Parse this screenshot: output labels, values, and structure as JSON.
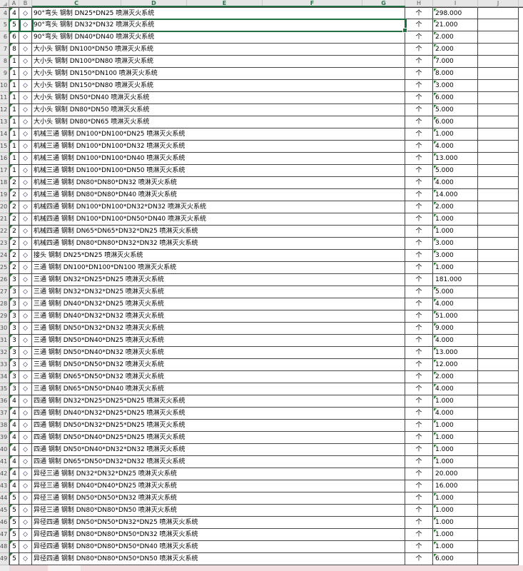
{
  "app": {
    "type": "spreadsheet-grid"
  },
  "colors": {
    "accent_green": "#217346",
    "error_triangle": "#2e7d32",
    "bottom_band_pink": "#f3dee1"
  },
  "columns": {
    "letters": [
      "A",
      "B",
      "C",
      "D",
      "E",
      "F",
      "G",
      "H",
      "I",
      "J"
    ],
    "selected_letters": [
      "C",
      "D",
      "E",
      "F",
      "G"
    ]
  },
  "selection": {
    "row": 5
  },
  "row_marker": "◇",
  "unit_label": "个",
  "visible_row_range": {
    "first": 4,
    "last": 49
  },
  "rows": [
    {
      "n": 4,
      "a": "4",
      "desc": "90°弯头 钢制 DN25*DN25 喷淋灭火系统",
      "qty": "298.000",
      "tri": true
    },
    {
      "n": 5,
      "a": "5",
      "desc": "90°弯头 钢制 DN32*DN32 喷淋灭火系统",
      "qty": "21.000",
      "tri": true
    },
    {
      "n": 6,
      "a": "6",
      "desc": "90°弯头 钢制 DN40*DN40 喷淋灭火系统",
      "qty": "2.000",
      "tri": true
    },
    {
      "n": 7,
      "a": "8",
      "desc": "大小头 钢制 DN100*DN50 喷淋灭火系统",
      "qty": "2.000",
      "tri": true
    },
    {
      "n": 8,
      "a": "1",
      "desc": "大小头 钢制 DN100*DN80 喷淋灭火系统",
      "qty": "7.000",
      "tri": true
    },
    {
      "n": 9,
      "a": "1",
      "desc": "大小头 钢制 DN150*DN100 喷淋灭火系统",
      "qty": "8.000",
      "tri": true
    },
    {
      "n": 10,
      "a": "1",
      "desc": "大小头 钢制 DN150*DN80 喷淋灭火系统",
      "qty": "3.000",
      "tri": true
    },
    {
      "n": 11,
      "a": "1",
      "desc": "大小头 钢制 DN50*DN40 喷淋灭火系统",
      "qty": "6.000",
      "tri": true
    },
    {
      "n": 12,
      "a": "1",
      "desc": "大小头 钢制 DN80*DN50 喷淋灭火系统",
      "qty": "5.000",
      "tri": true
    },
    {
      "n": 13,
      "a": "1",
      "desc": "大小头 钢制 DN80*DN65 喷淋灭火系统",
      "qty": "6.000",
      "tri": true
    },
    {
      "n": 14,
      "a": "1",
      "desc": "机械三通 钢制 DN100*DN100*DN25 喷淋灭火系统",
      "qty": "1.000",
      "tri": true
    },
    {
      "n": 15,
      "a": "1",
      "desc": "机械三通 钢制 DN100*DN100*DN32 喷淋灭火系统",
      "qty": "4.000",
      "tri": true
    },
    {
      "n": 16,
      "a": "1",
      "desc": "机械三通 钢制 DN100*DN100*DN40 喷淋灭火系统",
      "qty": "13.000",
      "tri": true
    },
    {
      "n": 17,
      "a": "1",
      "desc": "机械三通 钢制 DN100*DN100*DN50 喷淋灭火系统",
      "qty": "5.000",
      "tri": true
    },
    {
      "n": 18,
      "a": "2",
      "desc": "机械三通 钢制 DN80*DN80*DN32 喷淋灭火系统",
      "qty": "4.000",
      "tri": true
    },
    {
      "n": 19,
      "a": "2",
      "desc": "机械三通 钢制 DN80*DN80*DN40 喷淋灭火系统",
      "qty": "14.000",
      "tri": true
    },
    {
      "n": 20,
      "a": "2",
      "desc": "机械四通 钢制 DN100*DN100*DN32*DN32 喷淋灭火系统",
      "qty": "2.000",
      "tri": true
    },
    {
      "n": 21,
      "a": "2",
      "desc": "机械四通 钢制 DN100*DN100*DN50*DN40 喷淋灭火系统",
      "qty": "1.000",
      "tri": true
    },
    {
      "n": 22,
      "a": "2",
      "desc": "机械四通 钢制 DN65*DN65*DN32*DN25 喷淋灭火系统",
      "qty": "1.000",
      "tri": true
    },
    {
      "n": 23,
      "a": "2",
      "desc": "机械四通 钢制 DN80*DN80*DN32*DN32 喷淋灭火系统",
      "qty": "3.000",
      "tri": true
    },
    {
      "n": 24,
      "a": "2",
      "desc": "接头 钢制 DN25*DN25 喷淋灭火系统",
      "qty": "3.000",
      "tri": true
    },
    {
      "n": 25,
      "a": "2",
      "desc": "三通 钢制 DN100*DN100*DN100 喷淋灭火系统",
      "qty": "1.000",
      "tri": true
    },
    {
      "n": 26,
      "a": "3",
      "desc": "三通 钢制 DN32*DN25*DN25 喷淋灭火系统",
      "qty": "181.000",
      "tri": false
    },
    {
      "n": 27,
      "a": "3",
      "desc": "三通 钢制 DN32*DN32*DN25 喷淋灭火系统",
      "qty": "5.000",
      "tri": true
    },
    {
      "n": 28,
      "a": "3",
      "desc": "三通 钢制 DN40*DN32*DN25 喷淋灭火系统",
      "qty": "4.000",
      "tri": true
    },
    {
      "n": 29,
      "a": "3",
      "desc": "三通 钢制 DN40*DN32*DN32 喷淋灭火系统",
      "qty": "51.000",
      "tri": true
    },
    {
      "n": 30,
      "a": "3",
      "desc": "三通 钢制 DN50*DN32*DN32 喷淋灭火系统",
      "qty": "9.000",
      "tri": true
    },
    {
      "n": 31,
      "a": "3",
      "desc": "三通 钢制 DN50*DN40*DN25 喷淋灭火系统",
      "qty": "4.000",
      "tri": true
    },
    {
      "n": 32,
      "a": "3",
      "desc": "三通 钢制 DN50*DN40*DN32 喷淋灭火系统",
      "qty": "13.000",
      "tri": true
    },
    {
      "n": 33,
      "a": "3",
      "desc": "三通 钢制 DN50*DN50*DN32 喷淋灭火系统",
      "qty": "12.000",
      "tri": true
    },
    {
      "n": 34,
      "a": "3",
      "desc": "三通 钢制 DN65*DN50*DN32 喷淋灭火系统",
      "qty": "2.000",
      "tri": true
    },
    {
      "n": 35,
      "a": "3",
      "desc": "三通 钢制 DN65*DN50*DN40 喷淋灭火系统",
      "qty": "4.000",
      "tri": true
    },
    {
      "n": 36,
      "a": "4",
      "desc": "四通 钢制 DN32*DN25*DN25*DN25 喷淋灭火系统",
      "qty": "1.000",
      "tri": true
    },
    {
      "n": 37,
      "a": "4",
      "desc": "四通 钢制 DN40*DN32*DN25*DN25 喷淋灭火系统",
      "qty": "4.000",
      "tri": true
    },
    {
      "n": 38,
      "a": "4",
      "desc": "四通 钢制 DN50*DN32*DN25*DN25 喷淋灭火系统",
      "qty": "1.000",
      "tri": true
    },
    {
      "n": 39,
      "a": "4",
      "desc": "四通 钢制 DN50*DN40*DN25*DN25 喷淋灭火系统",
      "qty": "1.000",
      "tri": true
    },
    {
      "n": 40,
      "a": "4",
      "desc": "四通 钢制 DN50*DN40*DN32*DN32 喷淋灭火系统",
      "qty": "1.000",
      "tri": true
    },
    {
      "n": 41,
      "a": "4",
      "desc": "四通 钢制 DN65*DN50*DN32*DN32 喷淋灭火系统",
      "qty": "1.000",
      "tri": true
    },
    {
      "n": 42,
      "a": "4",
      "desc": "异径三通 钢制 DN32*DN32*DN25 喷淋灭火系统",
      "qty": "20.000",
      "tri": false
    },
    {
      "n": 43,
      "a": "4",
      "desc": "异径三通 钢制 DN40*DN40*DN25 喷淋灭火系统",
      "qty": "16.000",
      "tri": false
    },
    {
      "n": 44,
      "a": "5",
      "desc": "异径三通 钢制 DN50*DN50*DN32 喷淋灭火系统",
      "qty": "1.000",
      "tri": true
    },
    {
      "n": 45,
      "a": "5",
      "desc": "异径三通 钢制 DN80*DN80*DN50 喷淋灭火系统",
      "qty": "1.000",
      "tri": true
    },
    {
      "n": 46,
      "a": "5",
      "desc": "异径四通 钢制 DN50*DN50*DN32*DN25 喷淋灭火系统",
      "qty": "1.000",
      "tri": true
    },
    {
      "n": 47,
      "a": "5",
      "desc": "异径四通 钢制 DN80*DN80*DN50*DN32 喷淋灭火系统",
      "qty": "1.000",
      "tri": true
    },
    {
      "n": 48,
      "a": "5",
      "desc": "异径四通 钢制 DN80*DN80*DN50*DN40 喷淋灭火系统",
      "qty": "1.000",
      "tri": true
    },
    {
      "n": 49,
      "a": "5",
      "desc": "异径四通 钢制 DN80*DN80*DN50*DN50 喷淋灭火系统",
      "qty": "6.000",
      "tri": true
    }
  ]
}
